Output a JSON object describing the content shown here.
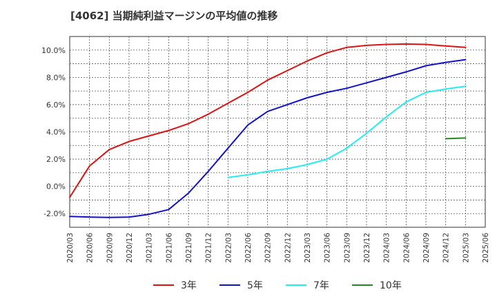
{
  "chart_data": {
    "type": "line",
    "title": "[4062]  当期純利益マージンの平均値の推移",
    "xlabel": "",
    "ylabel": "",
    "ylim": [
      -3.0,
      11.0
    ],
    "x_ticks": [
      "2020/03",
      "2020/06",
      "2020/09",
      "2020/12",
      "2021/03",
      "2021/06",
      "2021/09",
      "2021/12",
      "2022/03",
      "2022/06",
      "2022/09",
      "2022/12",
      "2023/03",
      "2023/06",
      "2023/09",
      "2023/12",
      "2024/03",
      "2024/06",
      "2024/09",
      "2024/12",
      "2025/03",
      "2025/06"
    ],
    "y_ticks": [
      -2.0,
      0.0,
      2.0,
      4.0,
      6.0,
      8.0,
      10.0
    ],
    "y_tick_labels": [
      "-2.0%",
      "0.0%",
      "2.0%",
      "4.0%",
      "6.0%",
      "8.0%",
      "10.0%"
    ],
    "grid": true,
    "legend_position": "bottom",
    "series": [
      {
        "name": "3年",
        "color": "#dd1111",
        "x": [
          "2020/03",
          "2020/06",
          "2020/09",
          "2020/12",
          "2021/03",
          "2021/06",
          "2021/09",
          "2021/12",
          "2022/03",
          "2022/06",
          "2022/09",
          "2022/12",
          "2023/03",
          "2023/06",
          "2023/09",
          "2023/12",
          "2024/03",
          "2024/06",
          "2024/09",
          "2024/12",
          "2025/03"
        ],
        "values": [
          -0.8,
          1.5,
          2.7,
          3.3,
          3.7,
          4.1,
          4.6,
          5.3,
          6.1,
          6.9,
          7.8,
          8.5,
          9.2,
          9.8,
          10.2,
          10.35,
          10.42,
          10.45,
          10.42,
          10.3,
          10.2
        ]
      },
      {
        "name": "5年",
        "color": "#1111cc",
        "x": [
          "2020/03",
          "2020/06",
          "2020/09",
          "2020/12",
          "2021/03",
          "2021/06",
          "2021/09",
          "2021/12",
          "2022/03",
          "2022/06",
          "2022/09",
          "2022/12",
          "2023/03",
          "2023/06",
          "2023/09",
          "2023/12",
          "2024/03",
          "2024/06",
          "2024/09",
          "2024/12",
          "2025/03"
        ],
        "values": [
          -2.2,
          -2.25,
          -2.28,
          -2.25,
          -2.05,
          -1.7,
          -0.5,
          1.1,
          2.8,
          4.5,
          5.5,
          6.0,
          6.5,
          6.9,
          7.2,
          7.6,
          8.0,
          8.4,
          8.85,
          9.1,
          9.3
        ]
      },
      {
        "name": "7年",
        "color": "#22eeee",
        "x": [
          "2022/03",
          "2022/06",
          "2022/09",
          "2022/12",
          "2023/03",
          "2023/06",
          "2023/09",
          "2023/12",
          "2024/03",
          "2024/06",
          "2024/09",
          "2024/12",
          "2025/03"
        ],
        "values": [
          0.65,
          0.85,
          1.1,
          1.3,
          1.6,
          2.0,
          2.8,
          3.9,
          5.1,
          6.2,
          6.9,
          7.15,
          7.35
        ]
      },
      {
        "name": "10年",
        "color": "#228822",
        "x": [
          "2024/12",
          "2025/03"
        ],
        "values": [
          3.5,
          3.55
        ]
      }
    ]
  }
}
